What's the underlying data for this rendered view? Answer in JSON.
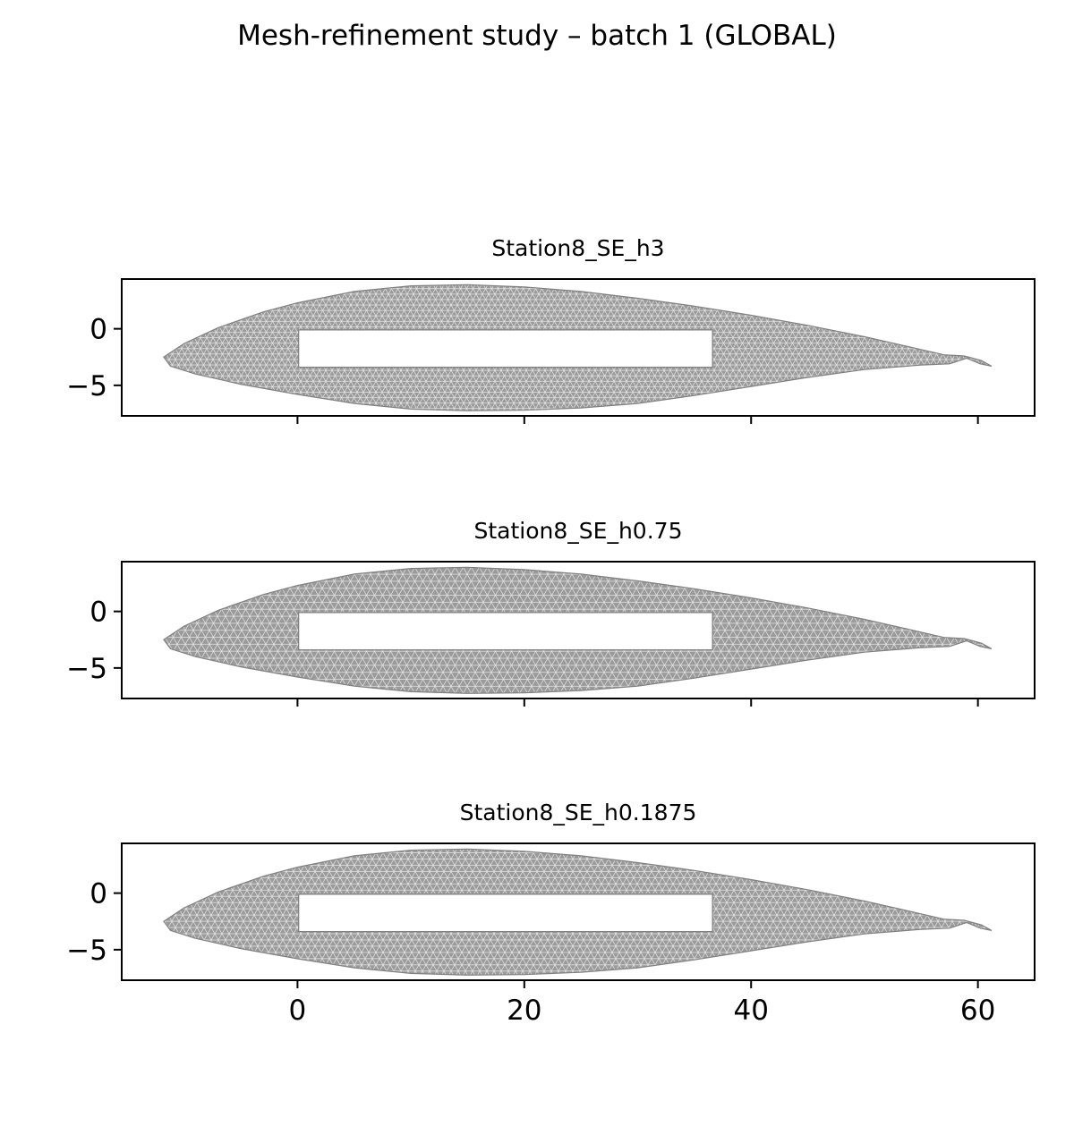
{
  "figure": {
    "suptitle": "Mesh-refinement study – batch 1 (GLOBAL)"
  },
  "chart_data": [
    {
      "type": "mesh",
      "title": "Station8_SE_h3",
      "xlabel": "",
      "ylabel": "",
      "xlim": [
        -15.5,
        65
      ],
      "ylim": [
        -7.7,
        4.4
      ],
      "xticks": [
        0,
        20,
        40,
        60
      ],
      "yticks": [
        0,
        -5
      ],
      "show_xticklabels": false,
      "mesh_color": "#808080",
      "outer_boundary_upper": [
        [
          -11.8,
          -2.5
        ],
        [
          -10,
          -1.3
        ],
        [
          -7,
          0.1
        ],
        [
          -3,
          1.5
        ],
        [
          0,
          2.3
        ],
        [
          5,
          3.3
        ],
        [
          10,
          3.8
        ],
        [
          15,
          3.9
        ],
        [
          20,
          3.7
        ],
        [
          25,
          3.3
        ],
        [
          30,
          2.7
        ],
        [
          35,
          2.0
        ],
        [
          40,
          1.2
        ],
        [
          45,
          0.3
        ],
        [
          50,
          -0.7
        ],
        [
          54,
          -1.6
        ],
        [
          57,
          -2.3
        ],
        [
          58.8,
          -2.4
        ],
        [
          60.3,
          -2.8
        ],
        [
          61.2,
          -3.3
        ]
      ],
      "outer_boundary_lower": [
        [
          61.2,
          -3.3
        ],
        [
          60.2,
          -3.1
        ],
        [
          59,
          -2.6
        ],
        [
          57.5,
          -3.1
        ],
        [
          55,
          -3.2
        ],
        [
          50,
          -3.6
        ],
        [
          45,
          -4.3
        ],
        [
          40,
          -5.1
        ],
        [
          35,
          -5.9
        ],
        [
          30,
          -6.6
        ],
        [
          25,
          -7.0
        ],
        [
          20,
          -7.2
        ],
        [
          15,
          -7.25
        ],
        [
          10,
          -7.1
        ],
        [
          5,
          -6.6
        ],
        [
          0,
          -5.8
        ],
        [
          -5,
          -4.9
        ],
        [
          -9,
          -4.0
        ],
        [
          -11.2,
          -3.3
        ],
        [
          -11.8,
          -2.5
        ]
      ],
      "inner_cutout": [
        [
          0.1,
          -0.1
        ],
        [
          36.6,
          -0.1
        ],
        [
          36.6,
          -3.4
        ],
        [
          0.1,
          -3.4
        ]
      ]
    },
    {
      "type": "mesh",
      "title": "Station8_SE_h0.75",
      "xlabel": "",
      "ylabel": "",
      "xlim": [
        -15.5,
        65
      ],
      "ylim": [
        -7.7,
        4.4
      ],
      "xticks": [
        0,
        20,
        40,
        60
      ],
      "yticks": [
        0,
        -5
      ],
      "show_xticklabels": false,
      "mesh_color": "#808080",
      "outer_boundary_upper": [
        [
          -11.8,
          -2.5
        ],
        [
          -10,
          -1.3
        ],
        [
          -7,
          0.1
        ],
        [
          -3,
          1.5
        ],
        [
          0,
          2.3
        ],
        [
          5,
          3.3
        ],
        [
          10,
          3.8
        ],
        [
          15,
          3.9
        ],
        [
          20,
          3.7
        ],
        [
          25,
          3.3
        ],
        [
          30,
          2.7
        ],
        [
          35,
          2.0
        ],
        [
          40,
          1.2
        ],
        [
          45,
          0.3
        ],
        [
          50,
          -0.7
        ],
        [
          54,
          -1.6
        ],
        [
          57,
          -2.3
        ],
        [
          58.8,
          -2.4
        ],
        [
          60.3,
          -2.8
        ],
        [
          61.2,
          -3.3
        ]
      ],
      "outer_boundary_lower": [
        [
          61.2,
          -3.3
        ],
        [
          60.2,
          -3.1
        ],
        [
          59,
          -2.6
        ],
        [
          57.5,
          -3.1
        ],
        [
          55,
          -3.2
        ],
        [
          50,
          -3.6
        ],
        [
          45,
          -4.3
        ],
        [
          40,
          -5.1
        ],
        [
          35,
          -5.9
        ],
        [
          30,
          -6.6
        ],
        [
          25,
          -7.0
        ],
        [
          20,
          -7.2
        ],
        [
          15,
          -7.25
        ],
        [
          10,
          -7.1
        ],
        [
          5,
          -6.6
        ],
        [
          0,
          -5.8
        ],
        [
          -5,
          -4.9
        ],
        [
          -9,
          -4.0
        ],
        [
          -11.2,
          -3.3
        ],
        [
          -11.8,
          -2.5
        ]
      ],
      "inner_cutout": [
        [
          0.1,
          -0.1
        ],
        [
          36.6,
          -0.1
        ],
        [
          36.6,
          -3.4
        ],
        [
          0.1,
          -3.4
        ]
      ]
    },
    {
      "type": "mesh",
      "title": "Station8_SE_h0.1875",
      "xlabel": "",
      "ylabel": "",
      "xlim": [
        -15.5,
        65
      ],
      "ylim": [
        -7.7,
        4.4
      ],
      "xticks": [
        0,
        20,
        40,
        60
      ],
      "yticks": [
        0,
        -5
      ],
      "show_xticklabels": true,
      "mesh_color": "#808080",
      "outer_boundary_upper": [
        [
          -11.8,
          -2.5
        ],
        [
          -10,
          -1.3
        ],
        [
          -7,
          0.1
        ],
        [
          -3,
          1.5
        ],
        [
          0,
          2.3
        ],
        [
          5,
          3.3
        ],
        [
          10,
          3.8
        ],
        [
          15,
          3.9
        ],
        [
          20,
          3.7
        ],
        [
          25,
          3.3
        ],
        [
          30,
          2.7
        ],
        [
          35,
          2.0
        ],
        [
          40,
          1.2
        ],
        [
          45,
          0.3
        ],
        [
          50,
          -0.7
        ],
        [
          54,
          -1.6
        ],
        [
          57,
          -2.3
        ],
        [
          58.8,
          -2.4
        ],
        [
          60.3,
          -2.8
        ],
        [
          61.2,
          -3.3
        ]
      ],
      "outer_boundary_lower": [
        [
          61.2,
          -3.3
        ],
        [
          60.2,
          -3.1
        ],
        [
          59,
          -2.6
        ],
        [
          57.5,
          -3.1
        ],
        [
          55,
          -3.2
        ],
        [
          50,
          -3.6
        ],
        [
          45,
          -4.3
        ],
        [
          40,
          -5.1
        ],
        [
          35,
          -5.9
        ],
        [
          30,
          -6.6
        ],
        [
          25,
          -7.0
        ],
        [
          20,
          -7.2
        ],
        [
          15,
          -7.25
        ],
        [
          10,
          -7.1
        ],
        [
          5,
          -6.6
        ],
        [
          0,
          -5.8
        ],
        [
          -5,
          -4.9
        ],
        [
          -9,
          -4.0
        ],
        [
          -11.2,
          -3.3
        ],
        [
          -11.8,
          -2.5
        ]
      ],
      "inner_cutout": [
        [
          0.1,
          -0.1
        ],
        [
          36.6,
          -0.1
        ],
        [
          36.6,
          -3.4
        ],
        [
          0.1,
          -3.4
        ]
      ]
    }
  ]
}
